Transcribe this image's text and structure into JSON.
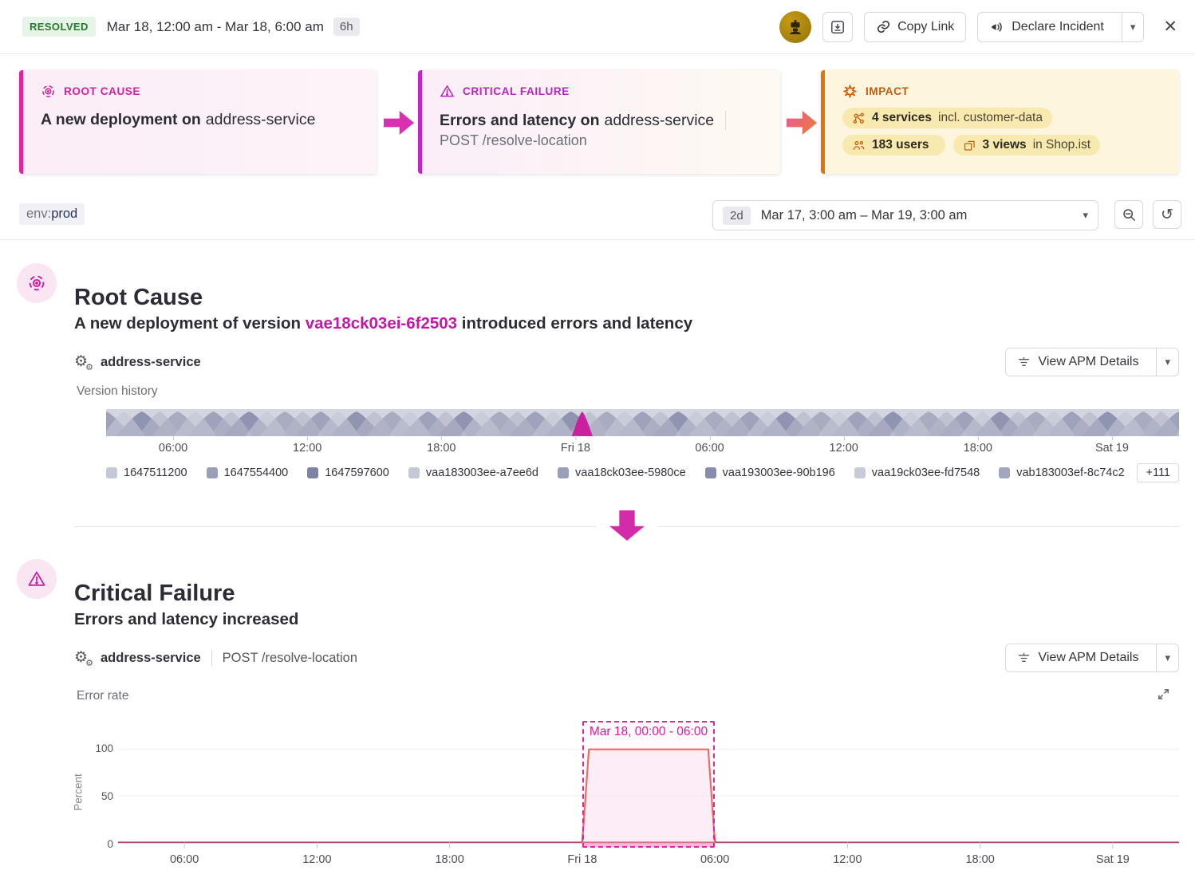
{
  "colors": {
    "accent_pink": "#d3219f",
    "critical_purple": "#bb23bb",
    "impact_orange": "#cd5f0c",
    "resolved_green": "#27792e",
    "error_red": "#e23e2f"
  },
  "glyphs": {
    "caret_down": "▾",
    "close": "✕",
    "undo": "↺",
    "gear": "⚙"
  },
  "header": {
    "status_badge": "RESOLVED",
    "time_range": "Mar 18, 12:00 am - Mar 18, 6:00 am",
    "duration_badge": "6h",
    "copy_link_label": "Copy Link",
    "declare_incident_label": "Declare Incident"
  },
  "summary_cards": {
    "root_cause": {
      "label": "ROOT CAUSE",
      "title_bold": "A new deployment on",
      "title_rest": "address-service"
    },
    "critical_failure": {
      "label": "CRITICAL FAILURE",
      "title_bold": "Errors and latency on",
      "title_rest": "address-service",
      "subtitle": "POST /resolve-location"
    },
    "impact": {
      "label": "IMPACT",
      "chips": [
        {
          "bold": "4 services",
          "rest": " incl. customer-data"
        },
        {
          "bold": "183 users",
          "rest": ""
        },
        {
          "bold": "3 views",
          "rest": " in Shop.ist"
        }
      ]
    }
  },
  "filter_bar": {
    "tag_key": "env:",
    "tag_value": "prod",
    "range_shortcut": "2d",
    "range_text": "Mar 17, 3:00 am – Mar 19, 3:00 am"
  },
  "root_cause_section": {
    "heading": "Root Cause",
    "description_prefix": "A new deployment of version ",
    "version": "vae18ck03ei-6f2503",
    "description_suffix": " introduced errors and latency",
    "service": "address-service",
    "apm_button_label": "View APM Details",
    "chart_label": "Version history",
    "legend": [
      {
        "label": "1647511200",
        "color": "#c5c8d6"
      },
      {
        "label": "1647554400",
        "color": "#9a9eb9"
      },
      {
        "label": "1647597600",
        "color": "#7e83a6"
      },
      {
        "label": "vaa183003ee-a7ee6d",
        "color": "#c5c8d6"
      },
      {
        "label": "vaa18ck03ee-5980ce",
        "color": "#9a9eb9"
      },
      {
        "label": "vaa193003ee-90b196",
        "color": "#888dac"
      },
      {
        "label": "vaa19ck03ee-fd7548",
        "color": "#c9ccd8"
      },
      {
        "label": "vab183003ef-8c74c2",
        "color": "#a2a6bf"
      }
    ],
    "legend_more": "+111"
  },
  "critical_failure_section": {
    "heading": "Critical Failure",
    "subheading": "Errors and latency increased",
    "service": "address-service",
    "endpoint": "POST /resolve-location",
    "apm_button_label": "View APM Details",
    "chart_label": "Error rate"
  },
  "chart_data": [
    {
      "type": "area",
      "title": "Version history",
      "x_start_label": "Mar 17, 3:00 am",
      "x_range_hours": [
        0,
        48
      ],
      "xticks": [
        {
          "hour": 3,
          "label": "06:00"
        },
        {
          "hour": 9,
          "label": "12:00"
        },
        {
          "hour": 15,
          "label": "18:00"
        },
        {
          "hour": 21,
          "label": "Fri 18"
        },
        {
          "hour": 27,
          "label": "06:00"
        },
        {
          "hour": 33,
          "label": "12:00"
        },
        {
          "hour": 39,
          "label": "18:00"
        },
        {
          "hour": 45,
          "label": "Sat 19"
        }
      ],
      "highlight": {
        "hour": 21.3,
        "color": "#c9209f"
      },
      "arch_colors_back": [
        "#9ba0b8",
        "#8b90ae",
        "#a6aabf"
      ],
      "arch_colors_front": [
        "#c3c6d5",
        "#b4b7ca"
      ],
      "background": "#d3d5e0",
      "arch_count": 30
    },
    {
      "type": "area",
      "title": "Error rate",
      "ylabel": "Percent",
      "ylim": [
        0,
        110
      ],
      "yticks": [
        0,
        50,
        100
      ],
      "x_range_hours": [
        0,
        48
      ],
      "xticks": [
        {
          "hour": 3,
          "label": "06:00"
        },
        {
          "hour": 9,
          "label": "12:00"
        },
        {
          "hour": 15,
          "label": "18:00"
        },
        {
          "hour": 21,
          "label": "Fri 18"
        },
        {
          "hour": 27,
          "label": "06:00"
        },
        {
          "hour": 33,
          "label": "12:00"
        },
        {
          "hour": 39,
          "label": "18:00"
        },
        {
          "hour": 45,
          "label": "Sat 19"
        }
      ],
      "series": [
        {
          "name": "Error rate",
          "color": "#e23e2f",
          "fill": "#fbd9ec",
          "points": [
            [
              21,
              0
            ],
            [
              21.3,
              100
            ],
            [
              26.7,
              100
            ],
            [
              27,
              0
            ]
          ]
        }
      ],
      "baseline_value": 0,
      "baseline_color": "#b5476b",
      "region": {
        "label": "Mar 18, 00:00 - 06:00",
        "start_hour": 21,
        "end_hour": 27,
        "color": "#e0259c"
      }
    }
  ]
}
